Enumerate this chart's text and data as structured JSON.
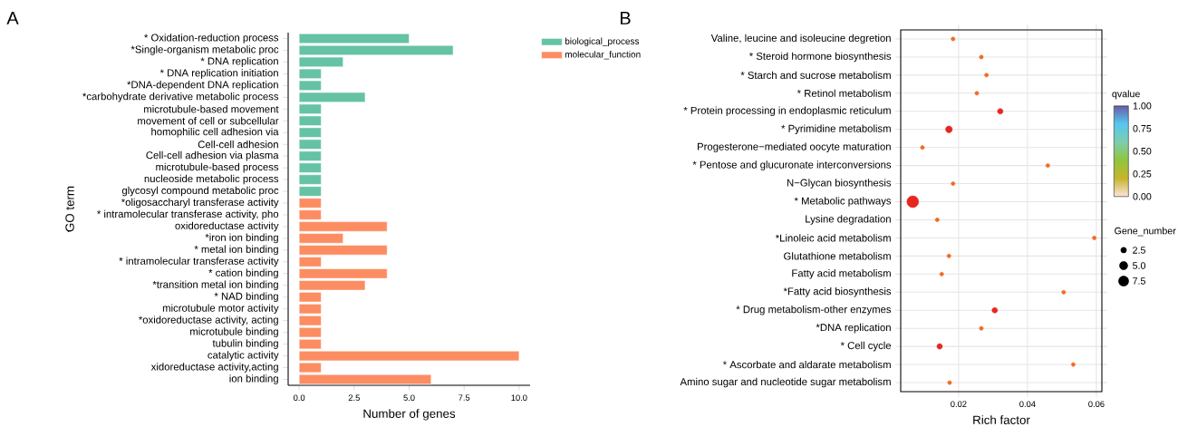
{
  "chart_data": [
    {
      "type": "bar",
      "orientation": "horizontal",
      "annotations": [
        "A"
      ],
      "xlabel": "Number of genes",
      "ylabel": "GO term",
      "categories": [
        "* Oxidation-reduction process",
        "*Single-organism metabolic proc",
        "* DNA replication",
        "* DNA replication initiation",
        "*DNA-dependent DNA replication",
        "*carbohydrate derivative metabolic process",
        "microtubule-based movement",
        "movement of cell or subcellular",
        "homophilic cell adhesion via",
        "Cell-cell adhesion",
        "Cell-cell adhesion via plasma",
        "microtubule-based process",
        "nucleoside metabolic process",
        "glycosyl compound metabolic proc",
        "*oligosaccharyl transferase activity",
        "* intramolecular transferase activity, pho",
        "oxidoreductase activity",
        "*iron ion binding",
        "* metal ion binding",
        "* intramolecular transferase activity",
        "* cation binding",
        "*transition metal ion binding",
        "* NAD binding",
        "microtubule motor activity",
        "*oxidoreductase activity, acting",
        "microtubule binding",
        "tubulin binding",
        "catalytic activity",
        "xidoreductase activity,acting",
        "ion binding"
      ],
      "series": [
        {
          "name": "biological_process",
          "color": "#66c2a5",
          "values": [
            5,
            7,
            2,
            1,
            1,
            3,
            1,
            1,
            1,
            1,
            1,
            1,
            1,
            1,
            null,
            null,
            null,
            null,
            null,
            null,
            null,
            null,
            null,
            null,
            null,
            null,
            null,
            null,
            null,
            null
          ]
        },
        {
          "name": "molecular_function",
          "color": "#fc8d62",
          "values": [
            null,
            null,
            null,
            null,
            null,
            null,
            null,
            null,
            null,
            null,
            null,
            null,
            null,
            null,
            1,
            1,
            4,
            2,
            4,
            1,
            4,
            3,
            1,
            1,
            1,
            1,
            1,
            10,
            1,
            6
          ]
        }
      ],
      "xlim": [
        -0.5,
        10.5
      ],
      "xticks": [
        {
          "value": 0,
          "label": "0.0"
        },
        {
          "value": 2.5,
          "label": "2.5"
        },
        {
          "value": 5,
          "label": "5.0"
        },
        {
          "value": 7.5,
          "label": "7.5"
        },
        {
          "value": 10,
          "label": "10.0"
        }
      ],
      "legend": "top right"
    },
    {
      "type": "bubble",
      "orientation": "horizontal",
      "annotations": [
        "B"
      ],
      "xlabel": "Rich factor",
      "marker": "circle",
      "grid": true,
      "categories": [
        "Valine, leucine and isoleucine degretion",
        "* Steroid hormone biosynthesis",
        "* Starch and sucrose metabolism",
        "* Retinol metabolism",
        "* Protein processing in endoplasmic reticulum",
        "* Pyrimidine metabolism",
        "Progesterone−mediated oocyte maturation",
        "* Pentose and glucuronate interconversions",
        "N−Glycan biosynthesis",
        "* Metabolic pathways",
        "Lysine degradation",
        "*Linoleic acid metabolism",
        "Glutathione metabolism",
        "Fatty acid metabolism",
        "*Fatty acid biosynthesis",
        "* Drug metabolism-other enzymes",
        "*DNA replication",
        "* Cell cycle",
        "* Ascorbate and aldarate metabolism",
        "Amino sugar and nucleotide sugar metabolism"
      ],
      "values": [
        0.0184,
        0.0266,
        0.0281,
        0.0253,
        0.0321,
        0.0172,
        0.0095,
        0.0459,
        0.0184,
        0.0067,
        0.0138,
        0.0594,
        0.0172,
        0.0151,
        0.0505,
        0.0305,
        0.0266,
        0.0145,
        0.0533,
        0.0174
      ],
      "sizes": [
        1,
        1,
        1,
        1,
        2,
        3,
        1,
        1,
        1,
        9,
        1,
        1,
        1,
        1,
        1,
        2,
        1,
        2,
        1,
        1
      ],
      "colors": [
        "#f26b21",
        "#f26b21",
        "#f26b21",
        "#f26b21",
        "#e8251f",
        "#e8251f",
        "#f26b21",
        "#f26b21",
        "#f26b21",
        "#e8251f",
        "#f26b21",
        "#f26b21",
        "#f26b21",
        "#f26b21",
        "#f26b21",
        "#e8251f",
        "#f26b21",
        "#e8251f",
        "#f26b21",
        "#f26b21"
      ],
      "size_legend": [
        2.5,
        {
          "value": 5,
          "label": "5.0"
        },
        7.5
      ],
      "legend_title": "Gene_number",
      "clabel": "qvalue",
      "clim": [
        0,
        1
      ],
      "cticks": [
        {
          "value": 0,
          "label": "0.00"
        },
        {
          "value": 0.25,
          "label": "0.25"
        },
        {
          "value": 0.5,
          "label": "0.50"
        },
        {
          "value": 0.75,
          "label": "0.75"
        },
        {
          "value": 1,
          "label": "1.00"
        }
      ],
      "xlim": [
        0.0032,
        0.0616
      ],
      "xticks": [
        0.02,
        0.04,
        0.06
      ]
    }
  ]
}
